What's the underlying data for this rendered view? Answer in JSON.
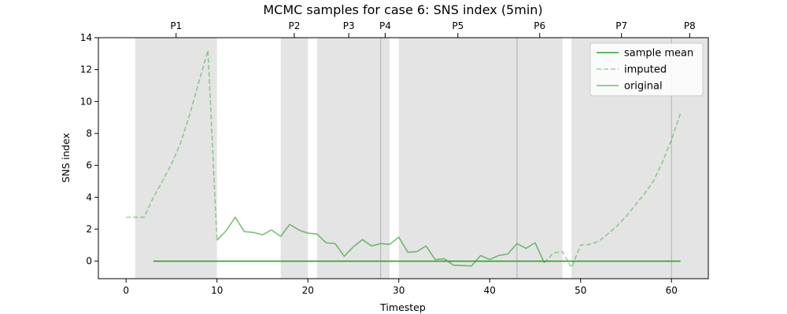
{
  "chart_data": {
    "type": "line",
    "title": "MCMC samples for case 6: SNS index (5min)",
    "xlabel": "Timestep",
    "ylabel": "SNS index",
    "xlim": [
      -3.05,
      64.05
    ],
    "ylim": [
      -1.1,
      14
    ],
    "xticks": [
      0,
      10,
      20,
      30,
      40,
      50,
      60
    ],
    "yticks": [
      0,
      2,
      4,
      6,
      8,
      10,
      12,
      14
    ],
    "grid": false,
    "legend_position": "top-right",
    "colors": {
      "line": "#2ca02c",
      "period_band": "#e4e4e4",
      "divider": "#b8b8b8",
      "axes": "#000000"
    },
    "period_bands": [
      {
        "start": 1,
        "end": 10,
        "label": "P1"
      },
      {
        "start": 17,
        "end": 20,
        "label": "P2"
      },
      {
        "start": 21,
        "end": 28,
        "label": "P3"
      },
      {
        "start": 28,
        "end": 29,
        "label": "P4"
      },
      {
        "start": 30,
        "end": 43,
        "label": "P5"
      },
      {
        "start": 43,
        "end": 48,
        "label": "P6"
      },
      {
        "start": 49,
        "end": 60,
        "label": "P7"
      },
      {
        "start": 60,
        "end": 64,
        "label": "P8"
      }
    ],
    "dividers": [
      28,
      43,
      60
    ],
    "series": [
      {
        "name": "sample mean",
        "style": "solid",
        "opacity": 1,
        "points": [
          [
            3,
            0
          ],
          [
            61,
            0
          ]
        ]
      },
      {
        "name": "imputed",
        "style": "dashed",
        "opacity": 0.45,
        "segments": [
          [
            [
              0,
              2.75
            ],
            [
              1,
              2.75
            ],
            [
              2,
              2.75
            ],
            [
              3,
              4.0
            ],
            [
              4,
              5.0
            ],
            [
              5,
              6.1
            ],
            [
              6,
              7.4
            ],
            [
              7,
              9.2
            ],
            [
              8,
              11.2
            ],
            [
              9,
              13.2
            ],
            [
              10,
              1.3
            ]
          ],
          [
            [
              46,
              -0.1
            ],
            [
              47,
              0.5
            ],
            [
              48,
              0.6
            ],
            [
              49,
              -0.4
            ],
            [
              50,
              1.0
            ],
            [
              51,
              1.05
            ],
            [
              52,
              1.25
            ],
            [
              53,
              1.7
            ],
            [
              54,
              2.2
            ],
            [
              55,
              2.8
            ],
            [
              56,
              3.5
            ],
            [
              57,
              4.2
            ],
            [
              58,
              5.0
            ],
            [
              59,
              6.2
            ],
            [
              60,
              7.6
            ],
            [
              61,
              9.3
            ]
          ]
        ]
      },
      {
        "name": "original",
        "style": "solid",
        "opacity": 0.65,
        "segments": [
          [
            [
              10,
              1.3
            ],
            [
              11,
              1.9
            ],
            [
              12,
              2.75
            ],
            [
              13,
              1.85
            ],
            [
              14,
              1.8
            ],
            [
              15,
              1.65
            ],
            [
              16,
              1.95
            ],
            [
              17,
              1.55
            ],
            [
              18,
              2.3
            ],
            [
              19,
              1.95
            ],
            [
              20,
              1.75
            ],
            [
              21,
              1.7
            ],
            [
              22,
              1.15
            ],
            [
              23,
              1.1
            ],
            [
              24,
              0.3
            ],
            [
              25,
              0.9
            ],
            [
              26,
              1.35
            ],
            [
              27,
              0.95
            ],
            [
              28,
              1.1
            ],
            [
              29,
              1.05
            ],
            [
              30,
              1.5
            ],
            [
              31,
              0.55
            ],
            [
              32,
              0.6
            ],
            [
              33,
              0.95
            ],
            [
              34,
              0.1
            ],
            [
              35,
              0.15
            ],
            [
              36,
              -0.25
            ],
            [
              37,
              -0.28
            ],
            [
              38,
              -0.3
            ],
            [
              39,
              0.35
            ],
            [
              40,
              0.1
            ],
            [
              41,
              0.35
            ],
            [
              42,
              0.45
            ],
            [
              43,
              1.1
            ],
            [
              44,
              0.8
            ],
            [
              45,
              1.15
            ],
            [
              46,
              -0.1
            ]
          ]
        ]
      }
    ]
  }
}
